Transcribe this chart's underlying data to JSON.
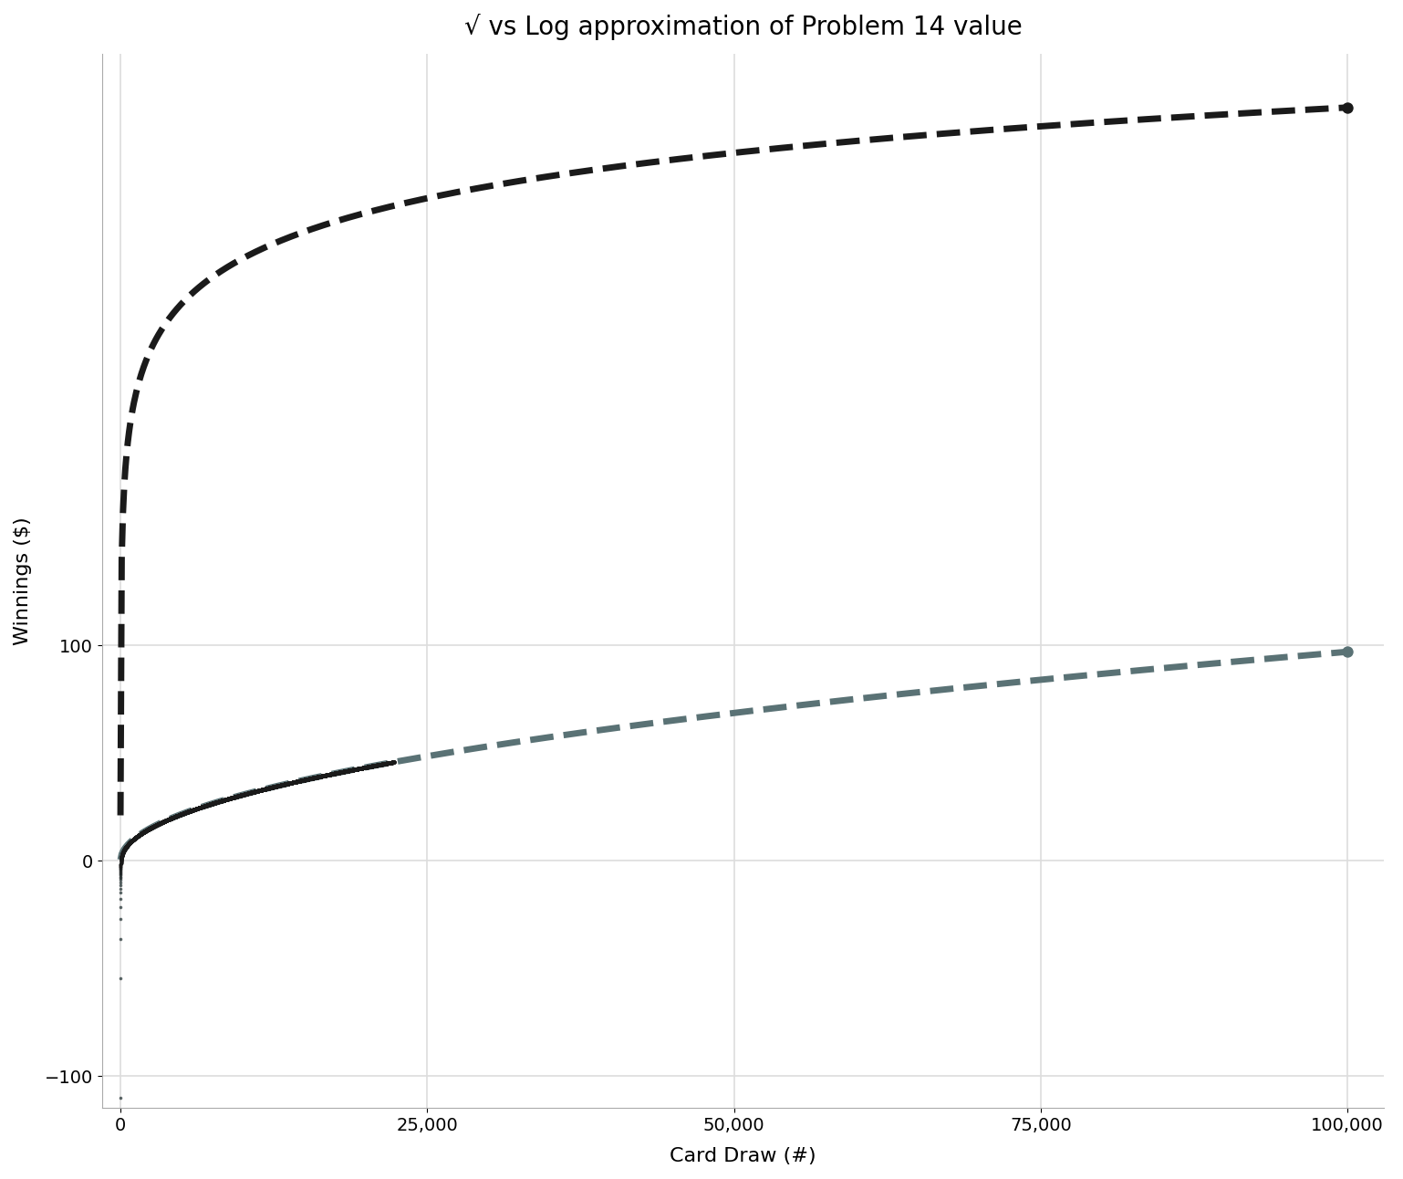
{
  "title": "√ vs Log approximation of Problem 14 value",
  "xlabel": "Card Draw (#)",
  "ylabel": "Winnings ($)",
  "xlim": [
    -1500,
    103000
  ],
  "ylim": [
    -115,
    375
  ],
  "yticks": [
    -100,
    0,
    100
  ],
  "xticks": [
    0,
    25000,
    50000,
    75000,
    100000
  ],
  "n_exact_max": 22294,
  "n_extra": 100000,
  "background_color": "#FFFFFF",
  "grid_color": "#DDDDDD",
  "exact_dark_color": "#1a1a1a",
  "exact_light_color": "#4d6b6e",
  "sqrt_dash_color": "#5a7275",
  "log_dash_color": "#1a1a1a",
  "sqrt_scale": 0.307,
  "log_scale": 30.4,
  "exact_D": -110.307,
  "dash_linewidth": 5.0,
  "small_point_size": 5,
  "large_point_size": 80,
  "title_fontsize": 20,
  "label_fontsize": 16,
  "tick_fontsize": 14
}
